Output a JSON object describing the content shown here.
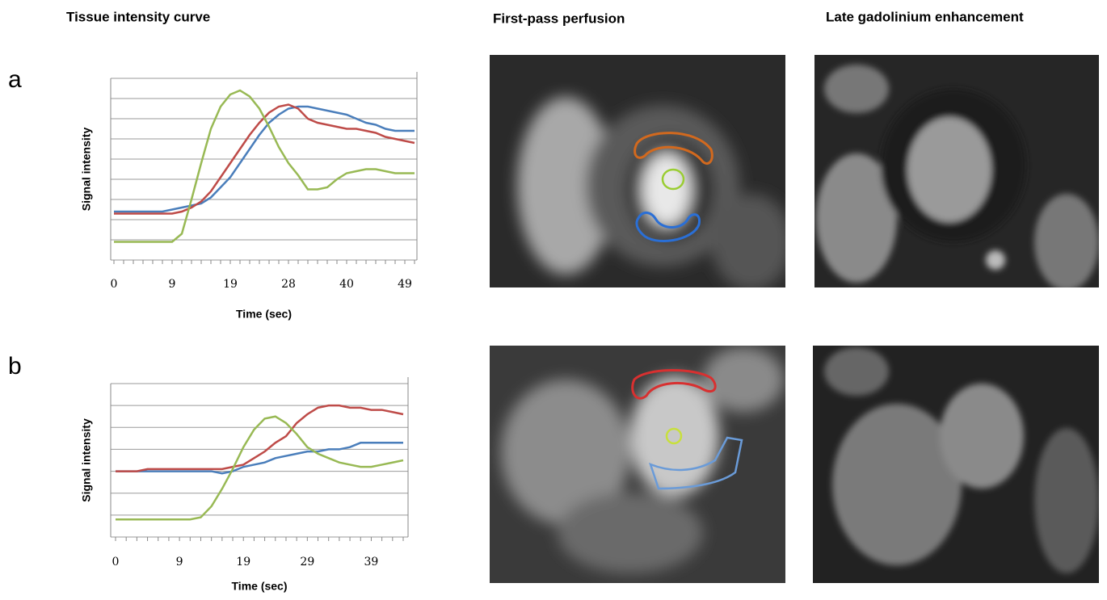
{
  "headers": {
    "curve": "Tissue intensity curve",
    "perfusion": "First-pass perfusion",
    "lge": "Late gadolinium enhancement"
  },
  "panels": [
    "a",
    "b"
  ],
  "chart_data": [
    {
      "type": "line",
      "x_label": "Time (sec)",
      "y_label": "Signal intensity",
      "categories": [
        "0",
        null,
        null,
        null,
        null,
        null,
        "9",
        null,
        null,
        null,
        null,
        null,
        "19",
        null,
        null,
        null,
        null,
        null,
        "28",
        null,
        null,
        null,
        null,
        null,
        "40",
        null,
        null,
        null,
        null,
        null,
        "49",
        null
      ],
      "series": [
        {
          "color": "#4a7ebb",
          "values": [
            2.4,
            2.4,
            2.4,
            2.4,
            2.4,
            2.4,
            2.5,
            2.6,
            2.7,
            2.8,
            3.1,
            3.6,
            4.1,
            4.8,
            5.5,
            6.2,
            6.8,
            7.2,
            7.5,
            7.6,
            7.6,
            7.5,
            7.4,
            7.3,
            7.2,
            7.0,
            6.8,
            6.7,
            6.5,
            6.4,
            6.4,
            6.4
          ]
        },
        {
          "color": "#be4b48",
          "values": [
            2.3,
            2.3,
            2.3,
            2.3,
            2.3,
            2.3,
            2.3,
            2.4,
            2.6,
            2.9,
            3.4,
            4.1,
            4.8,
            5.5,
            6.2,
            6.8,
            7.3,
            7.6,
            7.7,
            7.5,
            7.0,
            6.8,
            6.7,
            6.6,
            6.5,
            6.5,
            6.4,
            6.3,
            6.1,
            6.0,
            5.9,
            5.8
          ]
        },
        {
          "color": "#98b954",
          "values": [
            0.9,
            0.9,
            0.9,
            0.9,
            0.9,
            0.9,
            0.9,
            1.3,
            3.0,
            4.8,
            6.5,
            7.6,
            8.2,
            8.4,
            8.1,
            7.5,
            6.6,
            5.6,
            4.8,
            4.2,
            3.5,
            3.5,
            3.6,
            4.0,
            4.3,
            4.4,
            4.5,
            4.5,
            4.4,
            4.3,
            4.3,
            4.3
          ]
        }
      ],
      "ylim": [
        0,
        9
      ],
      "yticks": [
        0,
        1,
        2,
        3,
        4,
        5,
        6,
        7,
        8,
        9
      ],
      "grid": true
    },
    {
      "type": "line",
      "x_label": "Time (sec)",
      "y_label": "Signal intensity",
      "categories": [
        "0",
        null,
        null,
        null,
        null,
        null,
        "9",
        null,
        null,
        null,
        null,
        null,
        "19",
        null,
        null,
        null,
        null,
        null,
        "29",
        null,
        null,
        null,
        null,
        null,
        "39",
        null,
        null,
        null
      ],
      "series": [
        {
          "color": "#4a7ebb",
          "values": [
            3.0,
            3.0,
            3.0,
            3.0,
            3.0,
            3.0,
            3.0,
            3.0,
            3.0,
            3.0,
            2.9,
            3.0,
            3.2,
            3.3,
            3.4,
            3.6,
            3.7,
            3.8,
            3.9,
            3.9,
            4.0,
            4.0,
            4.1,
            4.3,
            4.3,
            4.3,
            4.3,
            4.3
          ]
        },
        {
          "color": "#be4b48",
          "values": [
            3.0,
            3.0,
            3.0,
            3.1,
            3.1,
            3.1,
            3.1,
            3.1,
            3.1,
            3.1,
            3.1,
            3.2,
            3.3,
            3.6,
            3.9,
            4.3,
            4.6,
            5.2,
            5.6,
            5.9,
            6.0,
            6.0,
            5.9,
            5.9,
            5.8,
            5.8,
            5.7,
            5.6
          ]
        },
        {
          "color": "#98b954",
          "values": [
            0.8,
            0.8,
            0.8,
            0.8,
            0.8,
            0.8,
            0.8,
            0.8,
            0.9,
            1.4,
            2.2,
            3.1,
            4.1,
            4.9,
            5.4,
            5.5,
            5.2,
            4.7,
            4.1,
            3.8,
            3.6,
            3.4,
            3.3,
            3.2,
            3.2,
            3.3,
            3.4,
            3.5
          ]
        }
      ],
      "ylim": [
        0,
        7
      ],
      "yticks": [
        0,
        1,
        2,
        3,
        4,
        5,
        6,
        7
      ],
      "grid": true
    }
  ]
}
